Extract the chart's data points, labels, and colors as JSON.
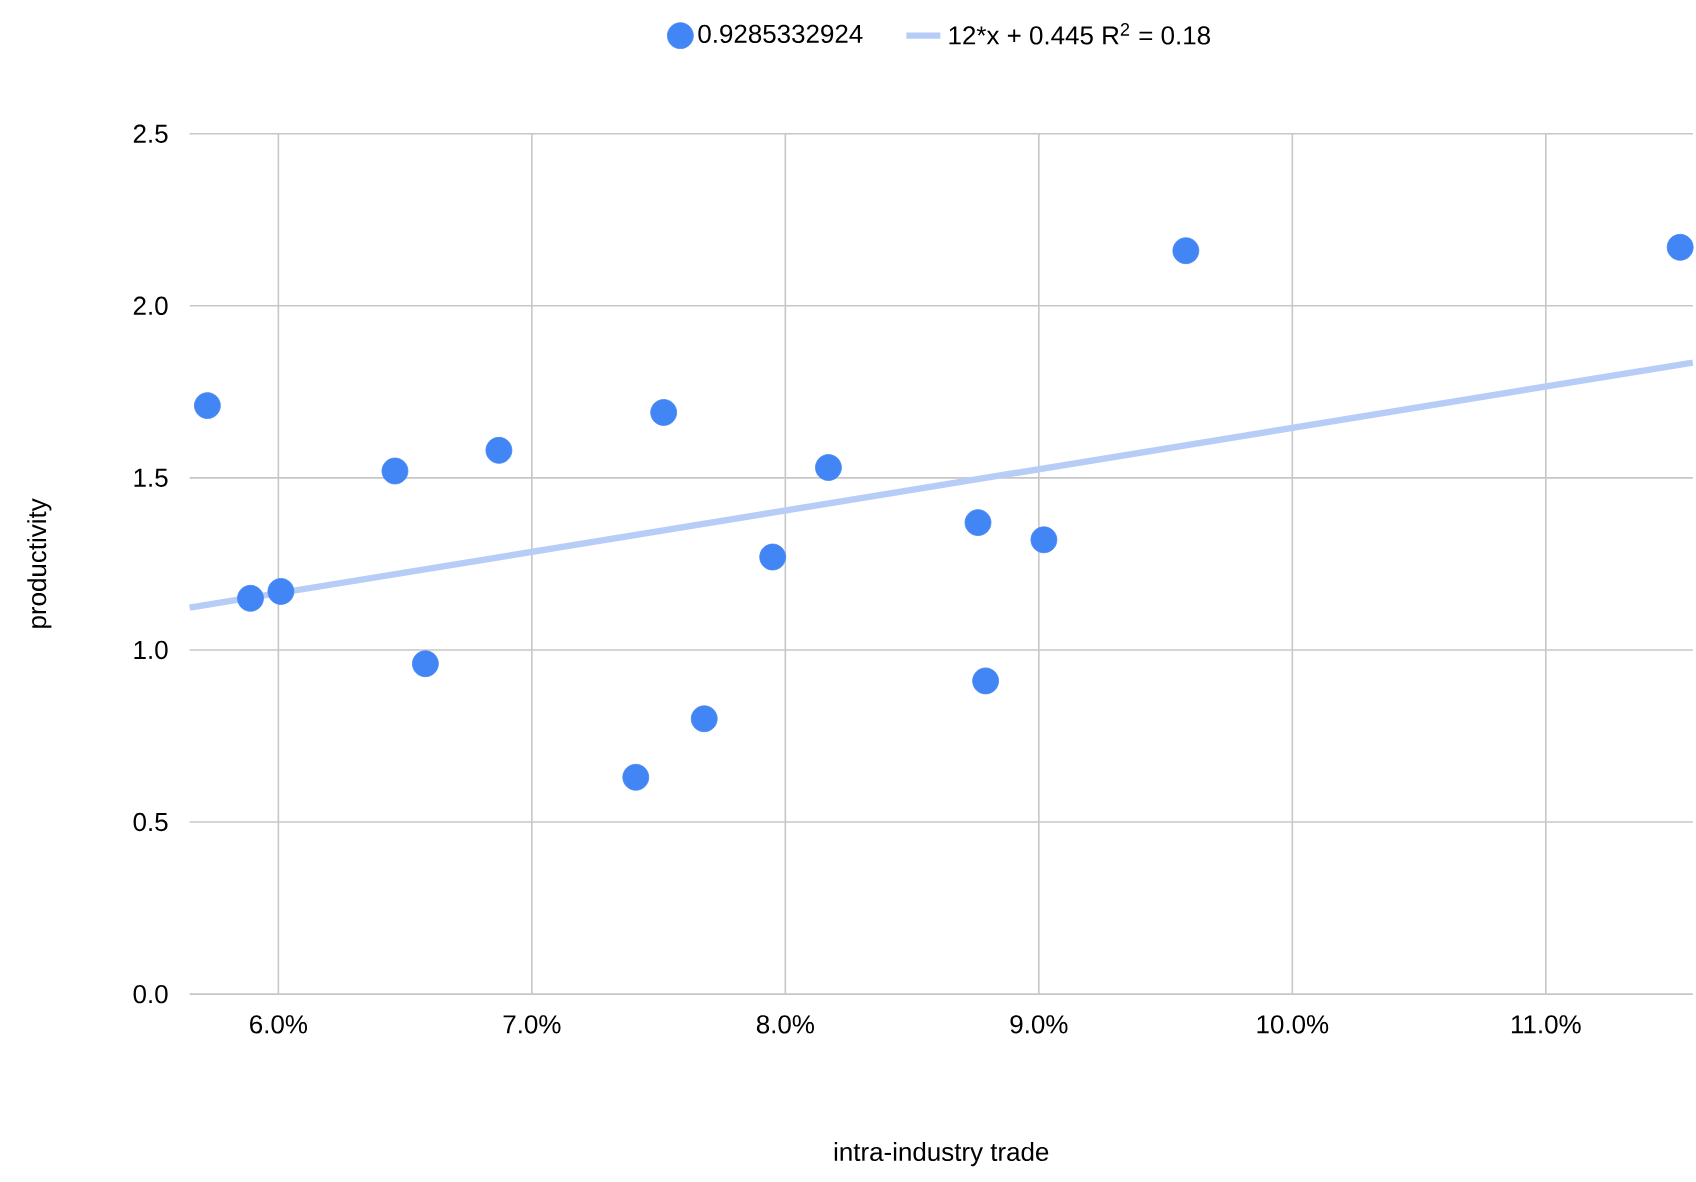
{
  "chart_data": {
    "type": "scatter",
    "xlabel": "intra-industry trade",
    "ylabel": "productivity",
    "xlim": [
      0.0565,
      0.1158
    ],
    "ylim": [
      0,
      2.5
    ],
    "xticks": [
      {
        "value": 0.06,
        "label": "6.0%"
      },
      {
        "value": 0.07,
        "label": "7.0%"
      },
      {
        "value": 0.08,
        "label": "8.0%"
      },
      {
        "value": 0.09,
        "label": "9.0%"
      },
      {
        "value": 0.1,
        "label": "10.0%"
      },
      {
        "value": 0.11,
        "label": "11.0%"
      }
    ],
    "yticks": [
      {
        "value": 0,
        "label": "0.0"
      },
      0.5,
      {
        "value": 1,
        "label": "1.0"
      },
      1.5,
      {
        "value": 2,
        "label": "2.0"
      },
      2.5
    ],
    "grid": true,
    "legend": "top",
    "series": [
      {
        "name": "0.9285332924",
        "marker": "circle",
        "color": "#4285f4",
        "x": [
          0.0572,
          0.0589,
          0.0601,
          0.0646,
          0.0658,
          0.0687,
          0.0741,
          0.0752,
          0.0768,
          0.0795,
          0.0817,
          0.0876,
          0.0879,
          0.0902,
          0.0958,
          0.1153
        ],
        "values": [
          1.71,
          1.15,
          1.17,
          1.52,
          0.96,
          1.58,
          0.63,
          1.69,
          0.8,
          1.27,
          1.53,
          1.37,
          0.91,
          1.32,
          2.16,
          2.17
        ]
      },
      {
        "name": "12*x + 0.445 R$^{2}$ = 0.18",
        "type": "line",
        "marker": "none",
        "color": "#b7cdf8",
        "x": [
          0.0565,
          0.1158
        ],
        "values": [
          1.123,
          1.835
        ]
      }
    ]
  }
}
